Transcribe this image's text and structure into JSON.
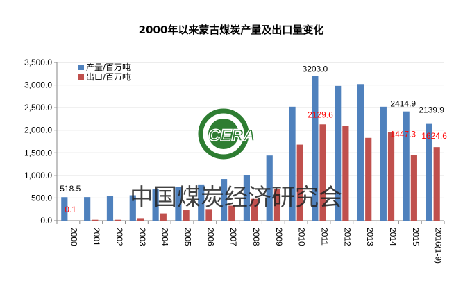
{
  "chart_data": {
    "type": "bar",
    "title": "2000年以来蒙古煤炭产量及出口量变化",
    "categories": [
      "2000",
      "2001",
      "2002",
      "2003",
      "2004",
      "2005",
      "2006",
      "2007",
      "2008",
      "2009",
      "2010",
      "2011",
      "2012",
      "2013",
      "2014",
      "2015",
      "2016(1-9)"
    ],
    "series": [
      {
        "name": "产量/百万吨",
        "color": "#4F81BD",
        "values": [
          518.5,
          520,
          550,
          560,
          690,
          750,
          800,
          920,
          1000,
          1440,
          2520,
          3203.0,
          2980,
          3020,
          2520,
          2414.9,
          2139.9
        ]
      },
      {
        "name": "出口/百万吨",
        "color": "#C0504D",
        "values": [
          0.1,
          20,
          20,
          40,
          160,
          230,
          240,
          330,
          480,
          700,
          1680,
          2129.6,
          2090,
          1830,
          1950,
          1447.3,
          1624.6
        ]
      }
    ],
    "data_labels": [
      {
        "series": 0,
        "index": 0,
        "text": "518.5",
        "color": "#000000"
      },
      {
        "series": 1,
        "index": 0,
        "text": "0.1",
        "color": "#FF0000"
      },
      {
        "series": 0,
        "index": 11,
        "text": "3203.0",
        "color": "#000000"
      },
      {
        "series": 1,
        "index": 11,
        "text": "2129.6",
        "color": "#FF0000"
      },
      {
        "series": 0,
        "index": 15,
        "text": "2414.9",
        "color": "#000000"
      },
      {
        "series": 1,
        "index": 15,
        "text": "1447.3",
        "color": "#FF0000"
      },
      {
        "series": 0,
        "index": 16,
        "text": "2139.9",
        "color": "#000000"
      },
      {
        "series": 1,
        "index": 16,
        "text": "1624.6",
        "color": "#FF0000"
      }
    ],
    "yticks": [
      "0.0",
      "500.0",
      "1,000.0",
      "1,500.0",
      "2,000.0",
      "2,500.0",
      "3,000.0",
      "3,500.0"
    ],
    "ylim": [
      0,
      3500
    ],
    "grid": true,
    "legend_position": "top-left",
    "watermark": {
      "text": "中国煤炭经济研究会",
      "logo_text": "CERA",
      "logo_color": "#2E7D32"
    }
  }
}
